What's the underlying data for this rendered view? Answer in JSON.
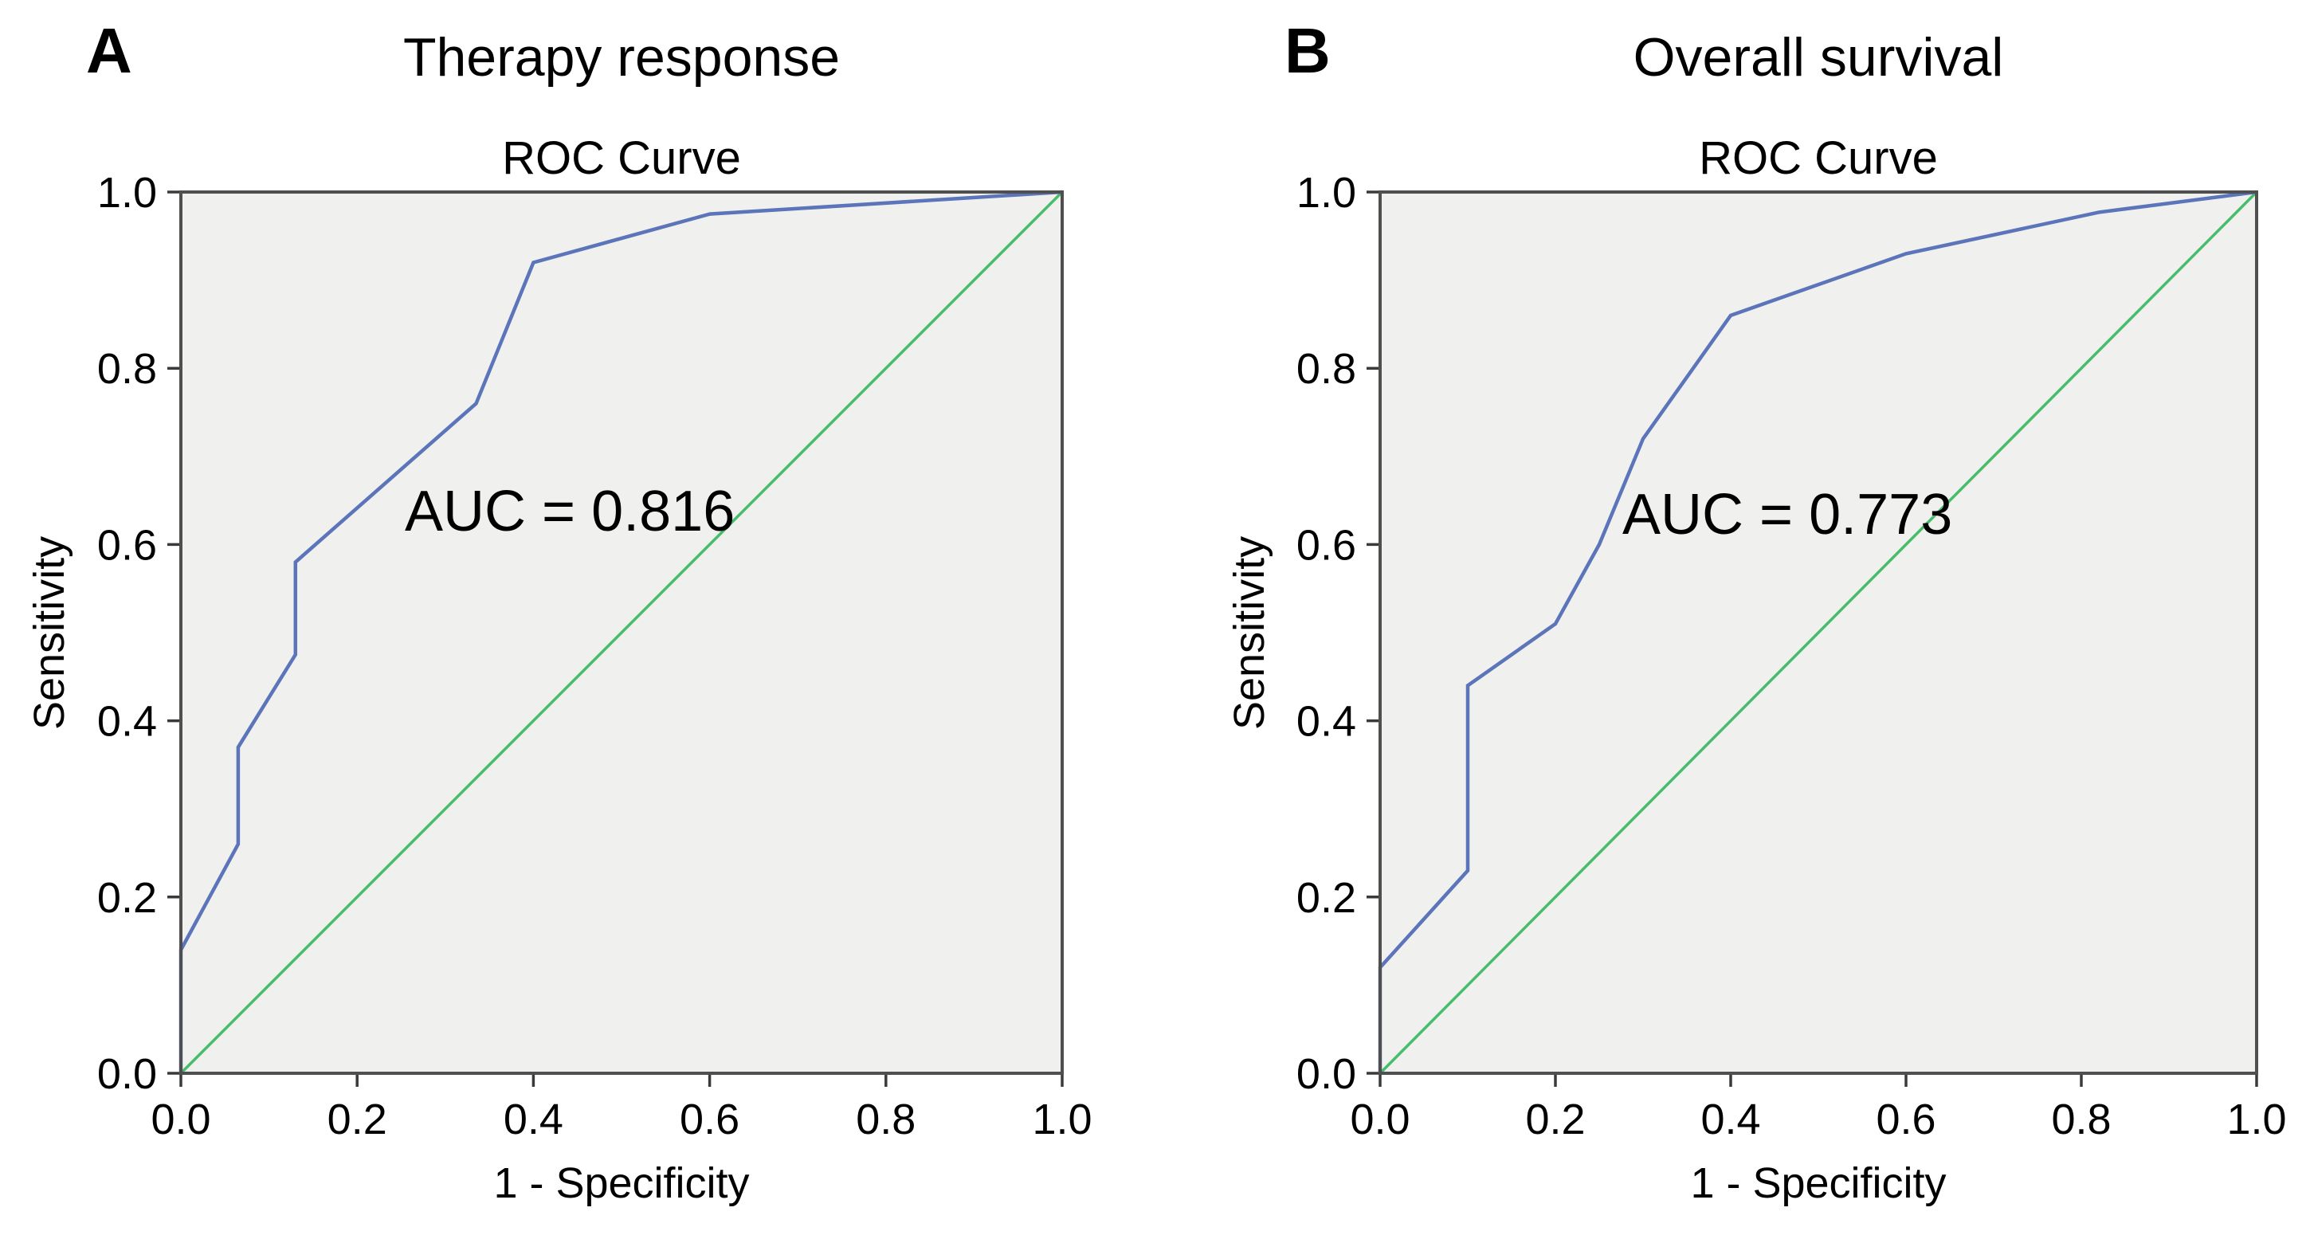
{
  "figure": {
    "panels": [
      {
        "letter": "A",
        "title": "Therapy response",
        "subtitle": "ROC Curve",
        "auc_text": "AUC = 0.816",
        "xlabel": "1 - Specificity",
        "ylabel": "Sensitivity"
      },
      {
        "letter": "B",
        "title": "Overall survival",
        "subtitle": "ROC Curve",
        "auc_text": "AUC = 0.773",
        "xlabel": "1 - Specificity",
        "ylabel": "Sensitivity"
      }
    ]
  },
  "style": {
    "plot_bg": "#f0f0ee",
    "frame_color": "#4f4f4f",
    "tick_color": "#3a3a3a",
    "roc_color": "#5b74ba",
    "reference_color": "#47bd6c"
  },
  "chart_data": [
    {
      "type": "line",
      "panel": "A",
      "panel_title": "Therapy response",
      "title": "ROC Curve",
      "annotation": "AUC = 0.816",
      "auc": 0.816,
      "xlabel": "1 - Specificity",
      "ylabel": "Sensitivity",
      "xlim": [
        0,
        1
      ],
      "ylim": [
        0,
        1
      ],
      "grid": false,
      "legend": "none",
      "x_ticks": [
        0.0,
        0.2,
        0.4,
        0.6,
        0.8,
        1.0
      ],
      "y_ticks": [
        0.0,
        0.2,
        0.4,
        0.6,
        0.8,
        1.0
      ],
      "x_tick_labels": [
        "0.0",
        "0.2",
        "0.4",
        "0.6",
        "0.8",
        "1.0"
      ],
      "y_tick_labels": [
        "0.0",
        "0.2",
        "0.4",
        "0.6",
        "0.8",
        "1.0"
      ],
      "series": [
        {
          "name": "ROC curve",
          "color": "#5b74ba",
          "width": 4.5,
          "x": [
            0,
            0,
            0.065,
            0.065,
            0.13,
            0.13,
            0.335,
            0.4,
            0.6,
            1.0
          ],
          "y": [
            0,
            0.14,
            0.26,
            0.37,
            0.475,
            0.58,
            0.76,
            0.92,
            0.975,
            1.0
          ]
        },
        {
          "name": "Reference line",
          "color": "#47bd6c",
          "width": 3.5,
          "x": [
            0,
            1
          ],
          "y": [
            0,
            1
          ]
        }
      ]
    },
    {
      "type": "line",
      "panel": "B",
      "panel_title": "Overall survival",
      "title": "ROC Curve",
      "annotation": "AUC = 0.773",
      "auc": 0.773,
      "xlabel": "1 - Specificity",
      "ylabel": "Sensitivity",
      "xlim": [
        0,
        1
      ],
      "ylim": [
        0,
        1
      ],
      "grid": false,
      "legend": "none",
      "x_ticks": [
        0.0,
        0.2,
        0.4,
        0.6,
        0.8,
        1.0
      ],
      "y_ticks": [
        0.0,
        0.2,
        0.4,
        0.6,
        0.8,
        1.0
      ],
      "x_tick_labels": [
        "0.0",
        "0.2",
        "0.4",
        "0.6",
        "0.8",
        "1.0"
      ],
      "y_tick_labels": [
        "0.0",
        "0.2",
        "0.4",
        "0.6",
        "0.8",
        "1.0"
      ],
      "series": [
        {
          "name": "ROC curve",
          "color": "#5b74ba",
          "width": 4.5,
          "x": [
            0,
            0,
            0.1,
            0.1,
            0.2,
            0.25,
            0.3,
            0.35,
            0.4,
            0.6,
            0.82,
            1.0
          ],
          "y": [
            0,
            0.12,
            0.23,
            0.44,
            0.51,
            0.6,
            0.72,
            0.79,
            0.86,
            0.93,
            0.977,
            1.0
          ]
        },
        {
          "name": "Reference line",
          "color": "#47bd6c",
          "width": 3.5,
          "x": [
            0,
            1
          ],
          "y": [
            0,
            1
          ]
        }
      ]
    }
  ]
}
